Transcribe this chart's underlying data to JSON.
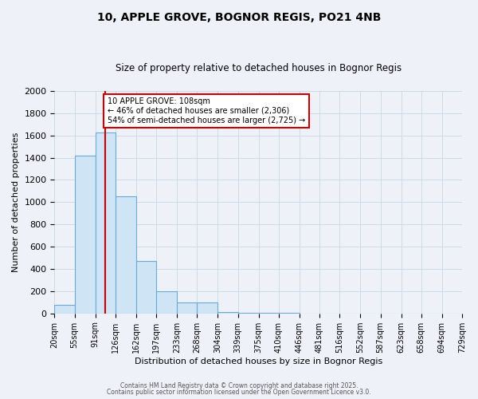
{
  "title": "10, APPLE GROVE, BOGNOR REGIS, PO21 4NB",
  "subtitle": "Size of property relative to detached houses in Bognor Regis",
  "xlabel": "Distribution of detached houses by size in Bognor Regis",
  "ylabel": "Number of detached properties",
  "bin_edges": [
    20,
    55,
    91,
    126,
    162,
    197,
    233,
    268,
    304,
    339,
    375,
    410,
    446,
    481,
    516,
    552,
    587,
    623,
    658,
    694,
    729
  ],
  "bar_heights": [
    80,
    1420,
    1630,
    1050,
    470,
    200,
    100,
    100,
    15,
    5,
    5,
    2,
    1,
    1,
    0,
    0,
    0,
    0,
    0,
    0
  ],
  "bar_face_color": "#cfe4f5",
  "bar_edge_color": "#6aaad4",
  "property_size": 108,
  "vline_color": "#cc0000",
  "annotation_line1": "10 APPLE GROVE: 108sqm",
  "annotation_line2": "← 46% of detached houses are smaller (2,306)",
  "annotation_line3": "54% of semi-detached houses are larger (2,725) →",
  "annotation_box_color": "#ffffff",
  "annotation_box_edge_color": "#cc0000",
  "ylim": [
    0,
    2000
  ],
  "yticks": [
    0,
    200,
    400,
    600,
    800,
    1000,
    1200,
    1400,
    1600,
    1800,
    2000
  ],
  "grid_color": "#c8d8e8",
  "background_color": "#eef2f8",
  "plot_bg_color": "#eef2f8",
  "footer_line1": "Contains HM Land Registry data © Crown copyright and database right 2025.",
  "footer_line2": "Contains public sector information licensed under the Open Government Licence v3.0.",
  "title_fontsize": 10,
  "subtitle_fontsize": 8.5,
  "axis_label_fontsize": 8,
  "tick_fontsize": 7,
  "annotation_fontsize": 7
}
